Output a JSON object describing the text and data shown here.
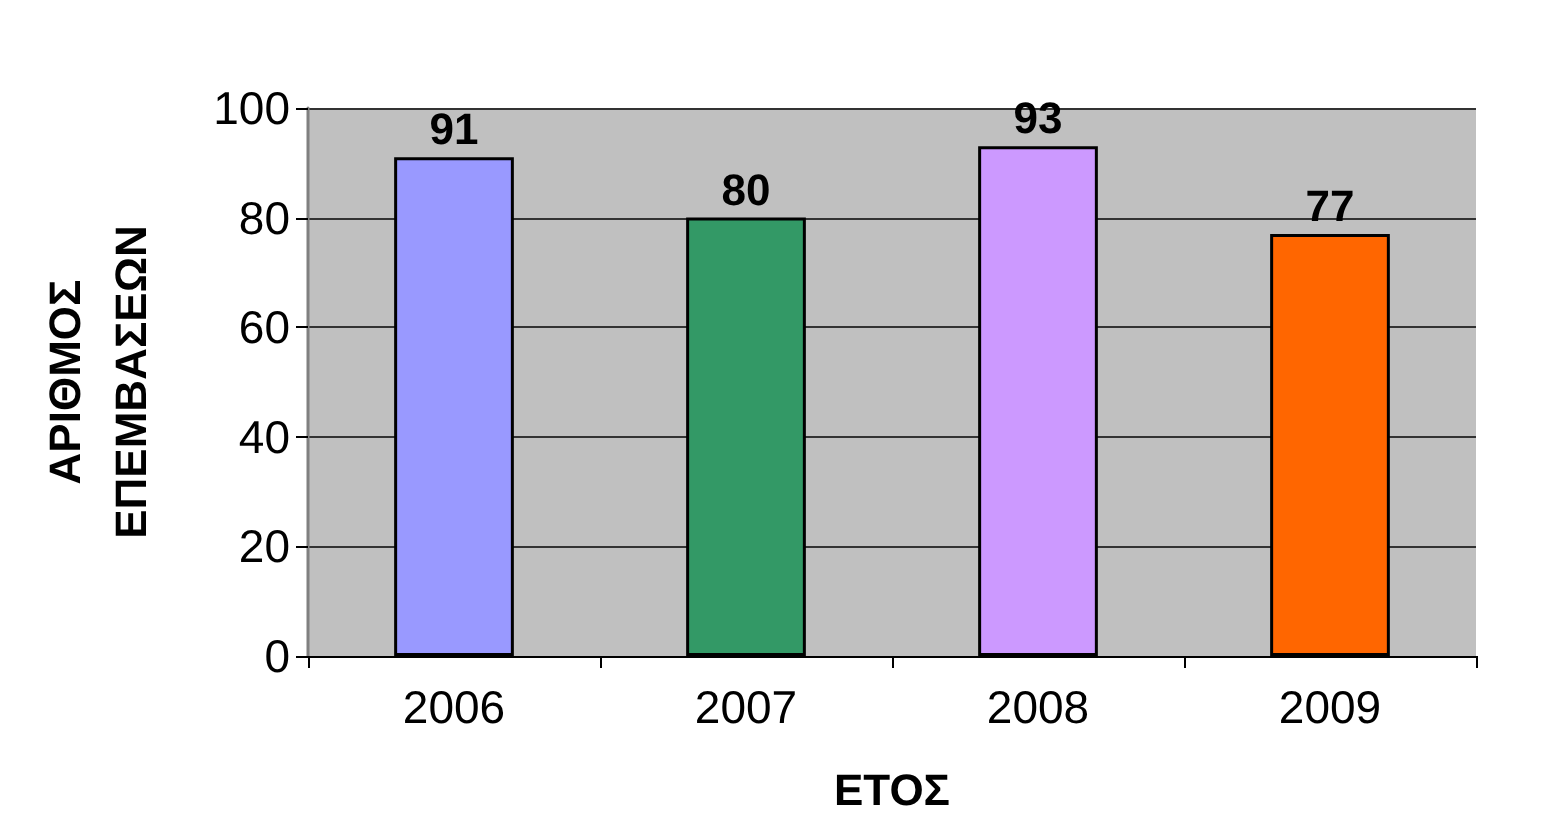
{
  "chart_data": {
    "type": "bar",
    "xlabel": "ΕΤΟΣ",
    "ylabel": "ΑΡΙΘΜΟΣ ΕΠΕΜΒΑΣΕΩΝ",
    "categories": [
      "2006",
      "2007",
      "2008",
      "2009"
    ],
    "values": [
      91,
      80,
      93,
      77
    ],
    "colors": [
      "#9999ff",
      "#339966",
      "#cc99ff",
      "#ff6600"
    ],
    "ylim": [
      0,
      100
    ],
    "yticks": [
      0,
      20,
      40,
      60,
      80,
      100
    ],
    "grid": "y",
    "data_labels": true
  }
}
